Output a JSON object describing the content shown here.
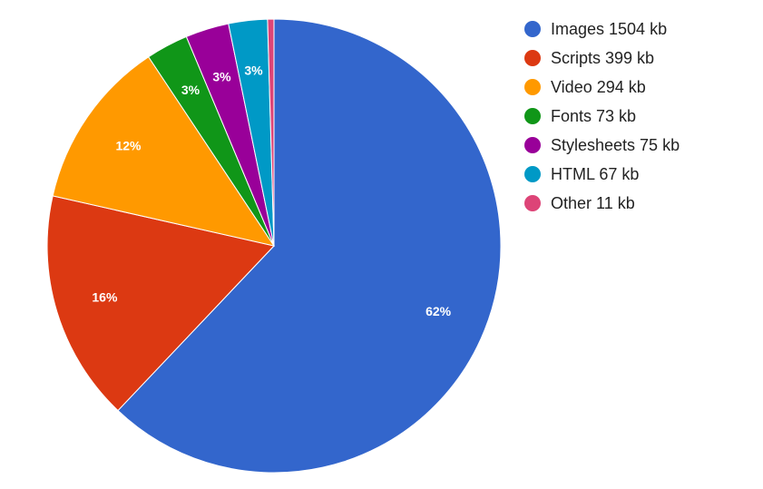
{
  "chart_data": {
    "type": "pie",
    "legend": "right",
    "start_angle_deg": 0,
    "direction": "clockwise",
    "slices": [
      {
        "name": "Images 1504 kb",
        "value": 1504,
        "percent_label": "62%",
        "color": "#3366cc"
      },
      {
        "name": "Scripts 399 kb",
        "value": 399,
        "percent_label": "16%",
        "color": "#dc3912"
      },
      {
        "name": "Video 294 kb",
        "value": 294,
        "percent_label": "12%",
        "color": "#ff9900"
      },
      {
        "name": "Fonts 73 kb",
        "value": 73,
        "percent_label": "3%",
        "color": "#109618"
      },
      {
        "name": "Stylesheets 75 kb",
        "value": 75,
        "percent_label": "3%",
        "color": "#990099"
      },
      {
        "name": "HTML 67 kb",
        "value": 67,
        "percent_label": "3%",
        "color": "#0099c6"
      },
      {
        "name": "Other 11 kb",
        "value": 11,
        "percent_label": "",
        "color": "#dd4477"
      }
    ]
  }
}
